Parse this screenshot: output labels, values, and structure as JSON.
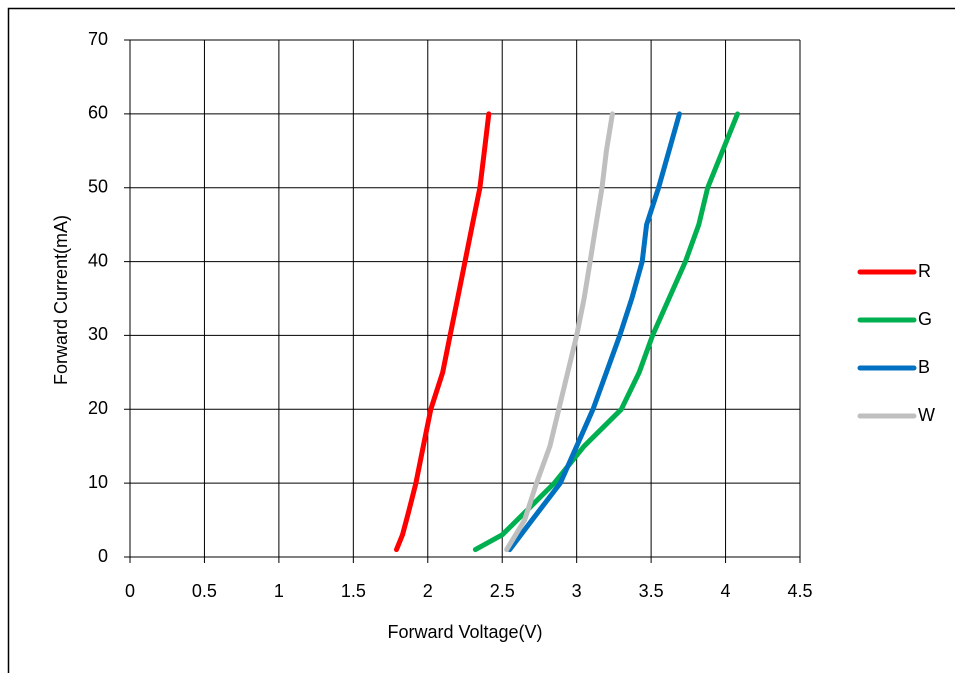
{
  "chart_data": {
    "type": "line",
    "x_label": "Forward Voltage(V)",
    "y_label": "Forward Current(mA)",
    "xlim": [
      0,
      4.5
    ],
    "xticks": [
      0,
      0.5,
      1,
      1.5,
      2,
      2.5,
      3,
      3.5,
      4,
      4.5
    ],
    "ylim": [
      0,
      70
    ],
    "yticks": [
      0,
      10,
      20,
      30,
      40,
      50,
      60,
      70
    ],
    "grid": true,
    "legend": "right",
    "series": [
      {
        "name": "R",
        "color": "#ff0000",
        "x": [
          1.79,
          1.83,
          1.87,
          1.92,
          1.97,
          2.02,
          2.1,
          2.15,
          2.2,
          2.25,
          2.3,
          2.35,
          2.38,
          2.41
        ],
        "values": [
          1,
          3,
          6,
          10,
          15,
          20,
          25,
          30,
          35,
          40,
          45,
          50,
          55,
          60
        ]
      },
      {
        "name": "G",
        "color": "#00b050",
        "x": [
          2.32,
          2.5,
          2.65,
          2.85,
          3.05,
          3.3,
          3.42,
          3.51,
          3.62,
          3.73,
          3.82,
          3.88,
          3.98,
          4.08
        ],
        "values": [
          1,
          3,
          6,
          10,
          15,
          20,
          25,
          30,
          35,
          40,
          45,
          50,
          55,
          60
        ]
      },
      {
        "name": "B",
        "color": "#0070c0",
        "x": [
          2.55,
          2.7,
          2.89,
          3.0,
          3.11,
          3.2,
          3.29,
          3.37,
          3.44,
          3.47,
          3.55,
          3.62,
          3.69
        ],
        "values": [
          1,
          5,
          10,
          15,
          20,
          25,
          30,
          35,
          40,
          45,
          50,
          55,
          60
        ]
      },
      {
        "name": "W",
        "color": "#bfbfbf",
        "x": [
          2.53,
          2.65,
          2.73,
          2.82,
          2.88,
          2.94,
          3.0,
          3.05,
          3.09,
          3.13,
          3.17,
          3.2,
          3.24
        ],
        "values": [
          1,
          5,
          10,
          15,
          20,
          25,
          30,
          35,
          40,
          45,
          50,
          55,
          60
        ]
      }
    ]
  }
}
